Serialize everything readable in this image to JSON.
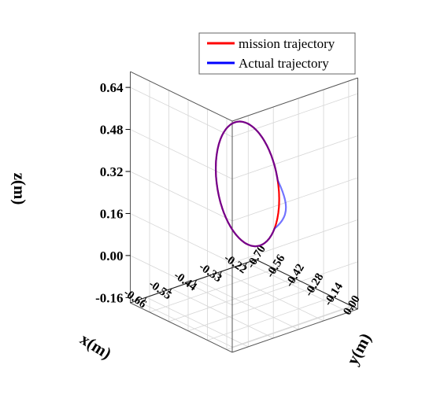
{
  "chart_data": {
    "type": "line",
    "projection": "3d",
    "xlabel": "x(m)",
    "ylabel": "y(m)",
    "zlabel": "z(m)",
    "xlim": [
      -0.73,
      -0.18
    ],
    "ylim": [
      -0.7,
      0.04
    ],
    "zlim": [
      -0.18,
      0.7
    ],
    "x_ticks": [
      "-0.22",
      "-0.33",
      "-0.44",
      "-0.55",
      "-0.66"
    ],
    "y_ticks": [
      "0.00",
      "-0.14",
      "-0.28",
      "-0.42",
      "-0.56",
      "-0.70"
    ],
    "z_ticks": [
      "-0.16",
      "0.00",
      "0.16",
      "0.32",
      "0.48",
      "0.64"
    ],
    "grid": true,
    "legend_position": "top-right",
    "series": [
      {
        "name": "mission trajectory",
        "color": "#ff0000",
        "shape": "circle",
        "center": {
          "x": -0.44,
          "y": -0.33,
          "z": 0.28
        },
        "radius": 0.23,
        "plane": "y-z"
      },
      {
        "name": "Actual trajectory",
        "color": "#0000ff",
        "shape": "circle-with-bump",
        "center": {
          "x": -0.44,
          "y": -0.33,
          "z": 0.28
        },
        "radius": 0.23,
        "plane": "y-z",
        "bump": {
          "max_y_offset": 0.05,
          "z_range": [
            0.16,
            0.35
          ]
        }
      }
    ]
  }
}
